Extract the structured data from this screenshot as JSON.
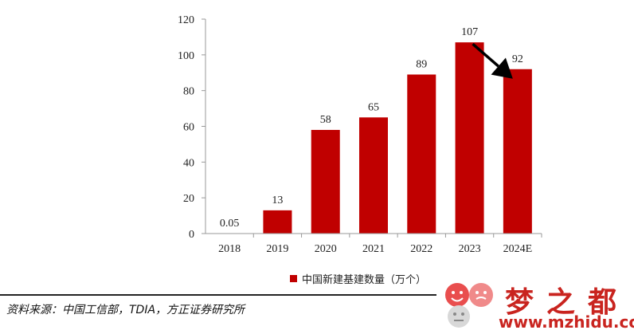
{
  "chart_data": {
    "type": "bar",
    "categories": [
      "2018",
      "2019",
      "2020",
      "2021",
      "2022",
      "2023",
      "2024E"
    ],
    "series": [
      {
        "name": "中国新建基建数量（万个）",
        "values": [
          0.05,
          13,
          58,
          65,
          89,
          107,
          92
        ],
        "color": "#c00000"
      }
    ],
    "data_labels": [
      "0.05",
      "13",
      "58",
      "65",
      "89",
      "107",
      "92"
    ],
    "ylim": [
      0,
      120
    ],
    "yticks": [
      0,
      20,
      40,
      60,
      80,
      100,
      120
    ],
    "title": "",
    "xlabel": "",
    "ylabel": "",
    "grid": false,
    "legend_position": "bottom-center",
    "annotation": {
      "type": "arrow",
      "from_category": "2023",
      "to_category": "2024E",
      "color": "#000000"
    }
  },
  "legend": {
    "label": "中国新建基建数量（万个）",
    "color": "#c00000"
  },
  "source": "资料来源：中国工信部，TDIA，方正证券研究所",
  "watermark": {
    "title": "梦之都",
    "url": "www.mzhidu.com",
    "color": "#c9241f"
  }
}
